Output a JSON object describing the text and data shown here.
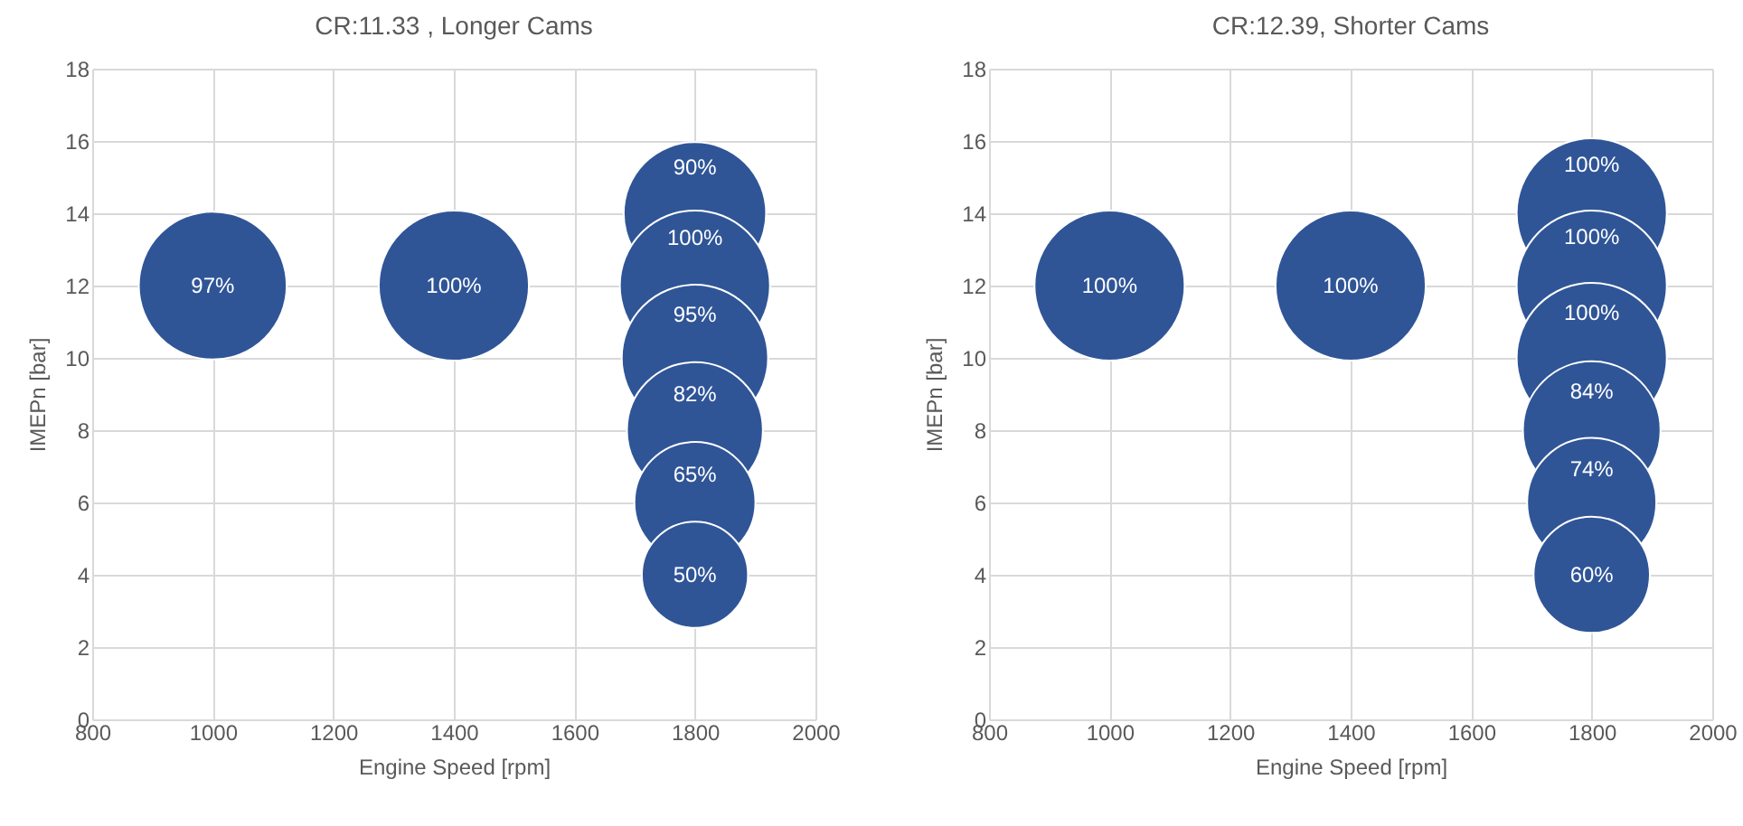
{
  "chart_data": [
    {
      "type": "bubble",
      "title": "CR:11.33 , Longer Cams",
      "xlabel": "Engine Speed [rpm]",
      "ylabel": "IMEPn [bar]",
      "x": [
        1000,
        1400,
        1800,
        1800,
        1800,
        1800,
        1800,
        1800
      ],
      "values": [
        12,
        12,
        14,
        12,
        10,
        8,
        6,
        4
      ],
      "sizes": [
        0.97,
        1,
        0.9,
        1,
        0.95,
        0.82,
        0.65,
        0.5
      ],
      "value_labels": [
        "97%",
        "100%",
        "90%",
        "100%",
        "95%",
        "82%",
        "65%",
        "50%"
      ],
      "color": "#2f5597",
      "xlim": [
        800,
        2000
      ],
      "xticks": [
        800,
        1000,
        1200,
        1400,
        1600,
        1800,
        2000
      ],
      "ylim": [
        0,
        18
      ],
      "yticks": [
        0,
        2,
        4,
        6,
        8,
        10,
        12,
        14,
        16,
        18
      ],
      "grid": true
    },
    {
      "type": "bubble",
      "title": "CR:12.39, Shorter Cams",
      "xlabel": "Engine Speed [rpm]",
      "ylabel": "IMEPn [bar]",
      "x": [
        1000,
        1400,
        1800,
        1800,
        1800,
        1800,
        1800,
        1800
      ],
      "values": [
        12,
        12,
        14,
        12,
        10,
        8,
        6,
        4
      ],
      "sizes": [
        1,
        1,
        1,
        1,
        1,
        0.84,
        0.74,
        0.6
      ],
      "value_labels": [
        "100%",
        "100%",
        "100%",
        "100%",
        "100%",
        "84%",
        "74%",
        "60%"
      ],
      "color": "#2f5597",
      "xlim": [
        800,
        2000
      ],
      "xticks": [
        800,
        1000,
        1200,
        1400,
        1600,
        1800,
        2000
      ],
      "ylim": [
        0,
        18
      ],
      "yticks": [
        0,
        2,
        4,
        6,
        8,
        10,
        12,
        14,
        16,
        18
      ],
      "grid": true
    }
  ]
}
